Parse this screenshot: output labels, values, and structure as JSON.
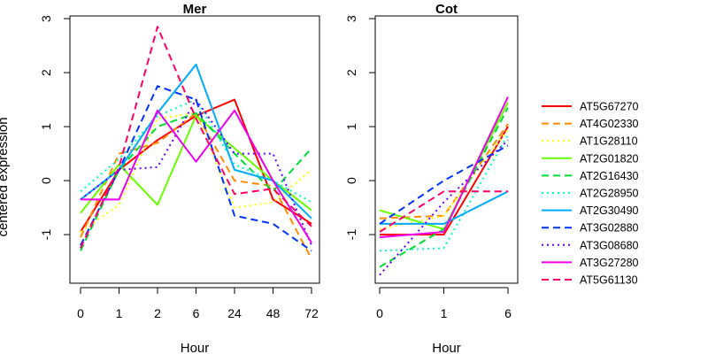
{
  "chart_data": {
    "type": "line",
    "ylabel": "centered expression",
    "legend_position": "right",
    "series_styles": [
      {
        "name": "AT5G67270",
        "color": "#ff0000",
        "dash": "solid"
      },
      {
        "name": "AT4G02330",
        "color": "#ff8c00",
        "dash": "dashed"
      },
      {
        "name": "AT1G28110",
        "color": "#ffff00",
        "dash": "dotted"
      },
      {
        "name": "AT2G01820",
        "color": "#66ff00",
        "dash": "solid"
      },
      {
        "name": "AT2G16430",
        "color": "#00dd33",
        "dash": "dashed"
      },
      {
        "name": "AT2G28950",
        "color": "#00ffbb",
        "dash": "dotted"
      },
      {
        "name": "AT2G30490",
        "color": "#00aaff",
        "dash": "solid"
      },
      {
        "name": "AT3G02880",
        "color": "#0033ff",
        "dash": "dashed"
      },
      {
        "name": "AT3G08680",
        "color": "#6600ff",
        "dash": "dotted"
      },
      {
        "name": "AT3G27280",
        "color": "#ee00ee",
        "dash": "solid"
      },
      {
        "name": "AT5G61130",
        "color": "#ff0066",
        "dash": "dashed"
      }
    ],
    "panels": [
      {
        "title": "Mer",
        "xlabel": "Hour",
        "categories": [
          "0",
          "1",
          "2",
          "6",
          "24",
          "48",
          "72"
        ],
        "ylim": [
          -1.9,
          3.05
        ],
        "yticks": [
          -1,
          0,
          1,
          2,
          3
        ],
        "series": [
          {
            "name": "AT5G67270",
            "values": [
              -0.95,
              0.2,
              0.75,
              1.2,
              1.5,
              -0.35,
              -0.8
            ]
          },
          {
            "name": "AT4G02330",
            "values": [
              -1.05,
              0.5,
              0.7,
              1.25,
              0.0,
              -0.1,
              -1.45
            ]
          },
          {
            "name": "AT1G28110",
            "values": [
              -0.95,
              -0.45,
              1.15,
              1.25,
              -0.5,
              -0.4,
              0.2
            ]
          },
          {
            "name": "AT2G01820",
            "values": [
              -0.6,
              0.3,
              -0.45,
              1.2,
              0.6,
              0.0,
              -0.55
            ]
          },
          {
            "name": "AT2G16430",
            "values": [
              -1.3,
              0.2,
              1.0,
              1.25,
              0.5,
              -0.2,
              0.6
            ]
          },
          {
            "name": "AT2G28950",
            "values": [
              -0.2,
              0.4,
              1.2,
              1.5,
              0.3,
              0.0,
              -0.4
            ]
          },
          {
            "name": "AT2G30490",
            "values": [
              -0.35,
              0.2,
              1.25,
              2.15,
              0.2,
              0.0,
              -0.7
            ]
          },
          {
            "name": "AT3G02880",
            "values": [
              -1.2,
              0.2,
              1.75,
              1.5,
              -0.65,
              -0.8,
              -1.3
            ]
          },
          {
            "name": "AT3G08680",
            "values": [
              -0.35,
              0.2,
              0.25,
              1.5,
              0.5,
              0.5,
              -1.2
            ]
          },
          {
            "name": "AT3G27280",
            "values": [
              -0.35,
              -0.35,
              1.3,
              0.35,
              1.3,
              0.0,
              -1.15
            ]
          },
          {
            "name": "AT5G61130",
            "values": [
              -1.25,
              0.25,
              2.85,
              1.15,
              -0.25,
              -0.15,
              -0.85
            ]
          }
        ]
      },
      {
        "title": "Cot",
        "xlabel": "Hour",
        "categories": [
          "0",
          "1",
          "6"
        ],
        "ylim": [
          -1.9,
          3.05
        ],
        "yticks": [
          -1,
          0,
          1,
          2,
          3
        ],
        "series": [
          {
            "name": "AT5G67270",
            "values": [
              -1.0,
              -1.0,
              1.0
            ]
          },
          {
            "name": "AT4G02330",
            "values": [
              -0.7,
              -0.65,
              1.05
            ]
          },
          {
            "name": "AT1G28110",
            "values": [
              -0.9,
              -0.65,
              0.95
            ]
          },
          {
            "name": "AT2G01820",
            "values": [
              -0.55,
              -0.9,
              1.45
            ]
          },
          {
            "name": "AT2G16430",
            "values": [
              -1.6,
              -0.9,
              1.35
            ]
          },
          {
            "name": "AT2G28950",
            "values": [
              -1.3,
              -1.25,
              0.85
            ]
          },
          {
            "name": "AT2G30490",
            "values": [
              -0.8,
              -0.8,
              -0.2
            ]
          },
          {
            "name": "AT3G02880",
            "values": [
              -0.8,
              0.0,
              0.65
            ]
          },
          {
            "name": "AT3G08680",
            "values": [
              -1.75,
              -0.4,
              0.75
            ]
          },
          {
            "name": "AT3G27280",
            "values": [
              -1.05,
              -0.95,
              1.55
            ]
          },
          {
            "name": "AT5G61130",
            "values": [
              -0.95,
              -0.2,
              -0.2
            ]
          }
        ]
      }
    ]
  }
}
